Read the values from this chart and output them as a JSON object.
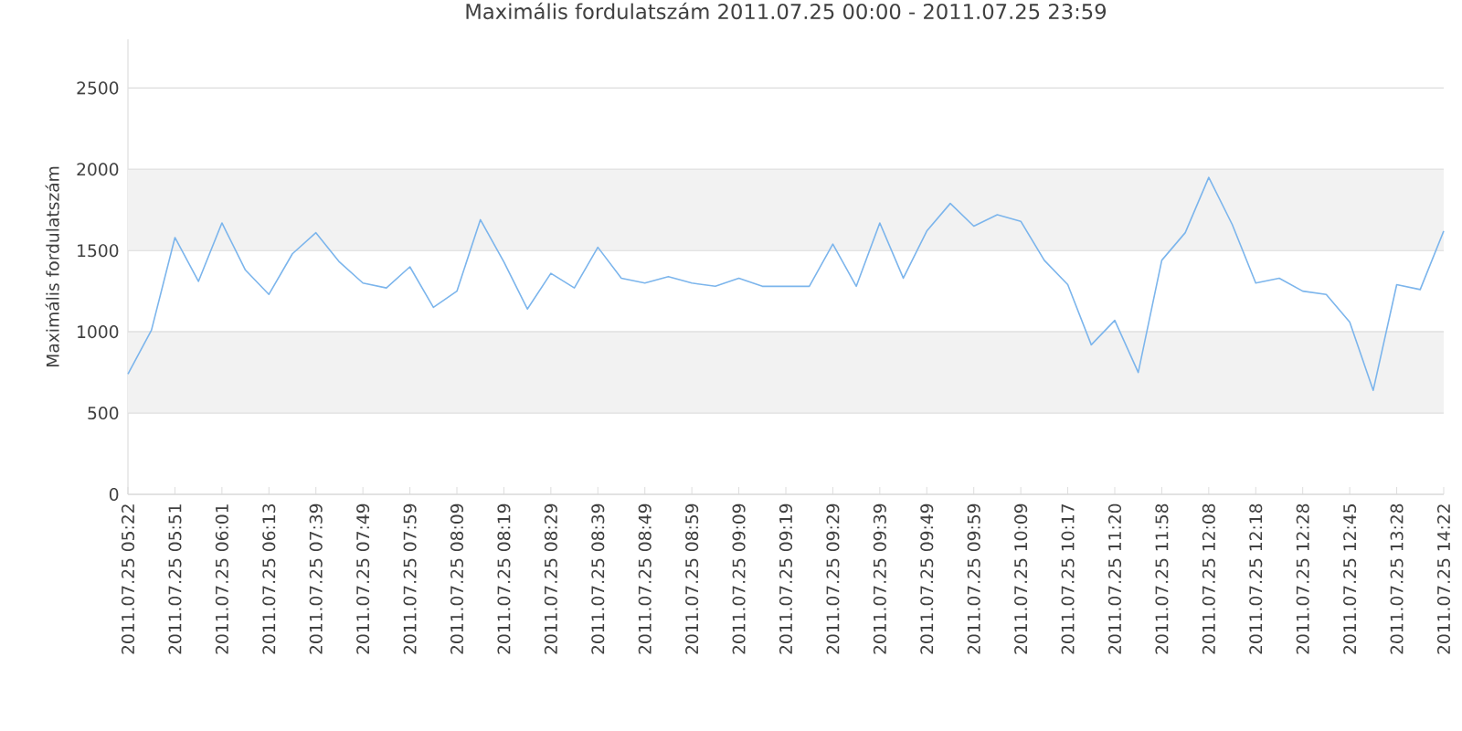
{
  "chart_data": {
    "type": "line",
    "title": "Maximális fordulatszám 2011.07.25 00:00 - 2011.07.25 23:59",
    "ylabel": "Maximális fordulatszám",
    "categories": [
      "2011.07.25 05:22",
      null,
      "2011.07.25 05:51",
      null,
      "2011.07.25 06:01",
      null,
      "2011.07.25 06:13",
      null,
      "2011.07.25 07:39",
      null,
      "2011.07.25 07:49",
      null,
      "2011.07.25 07:59",
      null,
      "2011.07.25 08:09",
      null,
      "2011.07.25 08:19",
      null,
      "2011.07.25 08:29",
      null,
      "2011.07.25 08:39",
      null,
      "2011.07.25 08:49",
      null,
      "2011.07.25 08:59",
      null,
      "2011.07.25 09:09",
      null,
      "2011.07.25 09:19",
      null,
      "2011.07.25 09:29",
      null,
      "2011.07.25 09:39",
      null,
      "2011.07.25 09:49",
      null,
      "2011.07.25 09:59",
      null,
      "2011.07.25 10:09",
      null,
      "2011.07.25 10:17",
      null,
      "2011.07.25 11:20",
      null,
      "2011.07.25 11:58",
      null,
      "2011.07.25 12:08",
      null,
      "2011.07.25 12:18",
      null,
      "2011.07.25 12:28",
      null,
      "2011.07.25 12:45",
      null,
      "2011.07.25 13:28",
      null,
      "2011.07.25 14:22"
    ],
    "series": [
      {
        "color": "#7cb5ec",
        "values": [
          740,
          1010,
          1580,
          1310,
          1670,
          1380,
          1230,
          1480,
          1610,
          1430,
          1300,
          1270,
          1400,
          1150,
          1250,
          1690,
          1430,
          1140,
          1360,
          1270,
          1520,
          1330,
          1300,
          1340,
          1300,
          1280,
          1330,
          1280,
          1280,
          1280,
          1540,
          1280,
          1670,
          1330,
          1620,
          1790,
          1650,
          1720,
          1680,
          1440,
          1290,
          920,
          1070,
          750,
          1440,
          1610,
          1950,
          1660,
          1300,
          1330,
          1250,
          1230,
          1060,
          640,
          1290,
          1260,
          1620
        ]
      }
    ],
    "ylim": [
      0,
      2800
    ],
    "yticks": [
      0,
      500,
      1000,
      1500,
      2000,
      2500
    ],
    "grid": "y",
    "marker": "none",
    "line_style": "solid",
    "bands": [
      {
        "axis": "y",
        "from": 500,
        "to": 1000,
        "color": "#f2f2f2"
      },
      {
        "axis": "y",
        "from": 1500,
        "to": 2000,
        "color": "#f2f2f2"
      }
    ]
  }
}
